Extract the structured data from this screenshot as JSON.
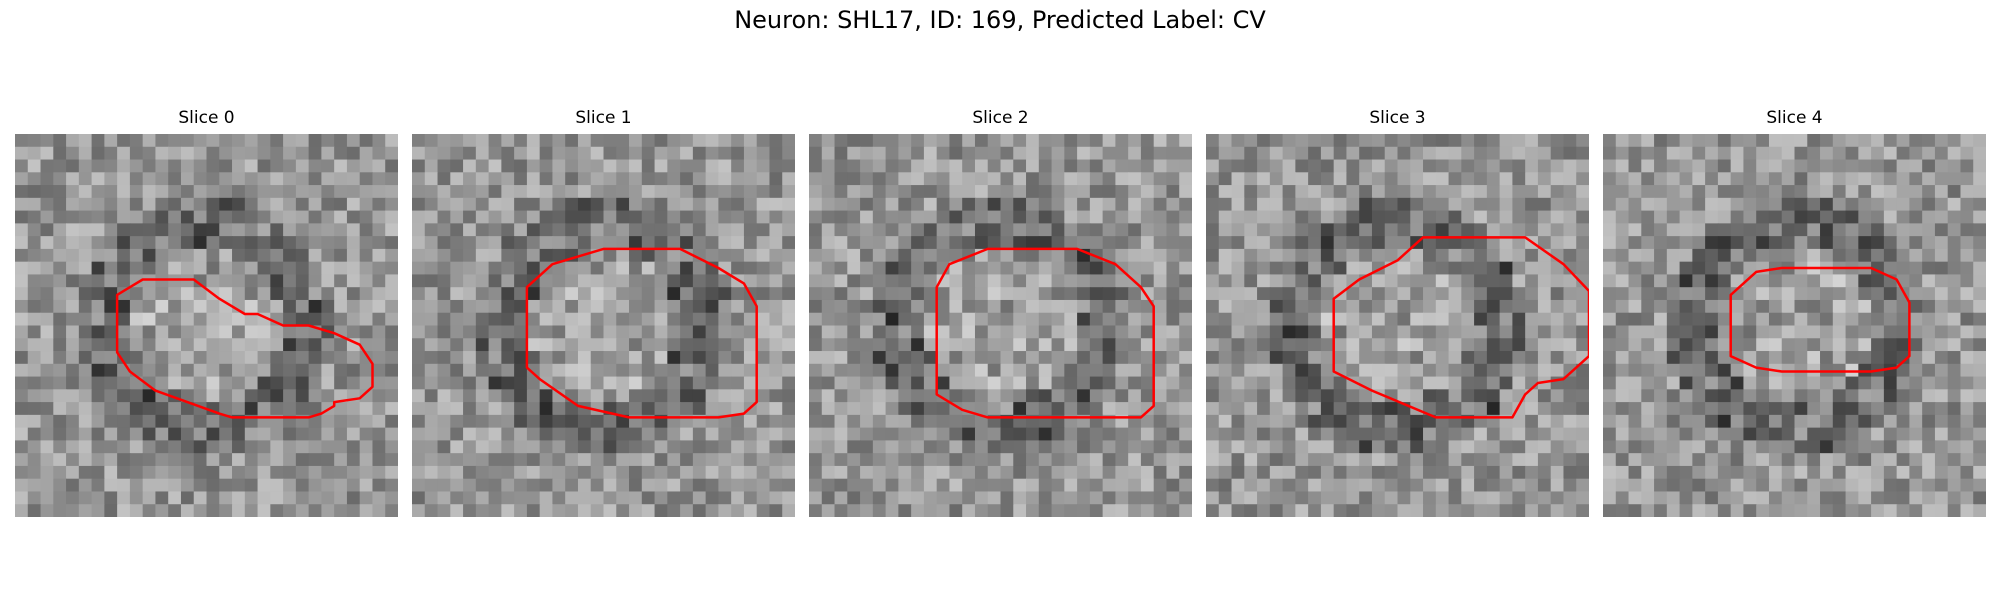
{
  "figure": {
    "title": "Neuron: SHL17, ID: 169, Predicted Label: CV"
  },
  "contour_color": "#ff0000",
  "panels": [
    {
      "title": "Slice 0",
      "seed": 11,
      "contour": [
        [
          8,
          0.42
        ],
        [
          10,
          0.38
        ],
        [
          14,
          0.38
        ],
        [
          16,
          0.43
        ],
        [
          18,
          0.47
        ],
        [
          19,
          0.47
        ],
        [
          21,
          0.5
        ],
        [
          23,
          0.5
        ],
        [
          25,
          0.52
        ],
        [
          27,
          0.55
        ],
        [
          28,
          0.6
        ],
        [
          28,
          0.66
        ],
        [
          27,
          0.69
        ],
        [
          25,
          0.7
        ],
        [
          25,
          0.71
        ],
        [
          24,
          0.73
        ],
        [
          23,
          0.74
        ],
        [
          17,
          0.74
        ],
        [
          16,
          0.73
        ],
        [
          11,
          0.67
        ],
        [
          9,
          0.62
        ],
        [
          8,
          0.57
        ]
      ]
    },
    {
      "title": "Slice 1",
      "seed": 23,
      "contour": [
        [
          9,
          0.4
        ],
        [
          11,
          0.34
        ],
        [
          15,
          0.3
        ],
        [
          21,
          0.3
        ],
        [
          24,
          0.35
        ],
        [
          26,
          0.39
        ],
        [
          27,
          0.45
        ],
        [
          27,
          0.7
        ],
        [
          26,
          0.73
        ],
        [
          24,
          0.74
        ],
        [
          17,
          0.74
        ],
        [
          13,
          0.71
        ],
        [
          10,
          0.64
        ],
        [
          9,
          0.61
        ]
      ]
    },
    {
      "title": "Slice 2",
      "seed": 37,
      "contour": [
        [
          10,
          0.4
        ],
        [
          11,
          0.34
        ],
        [
          14,
          0.3
        ],
        [
          21,
          0.3
        ],
        [
          24,
          0.34
        ],
        [
          26,
          0.4
        ],
        [
          27,
          0.45
        ],
        [
          27,
          0.71
        ],
        [
          26,
          0.74
        ],
        [
          24,
          0.74
        ],
        [
          14,
          0.74
        ],
        [
          12,
          0.72
        ],
        [
          10,
          0.68
        ]
      ]
    },
    {
      "title": "Slice 3",
      "seed": 49,
      "contour": [
        [
          10,
          0.43
        ],
        [
          12,
          0.38
        ],
        [
          15,
          0.33
        ],
        [
          17,
          0.27
        ],
        [
          25,
          0.27
        ],
        [
          28,
          0.34
        ],
        [
          30,
          0.41
        ],
        [
          30,
          0.58
        ],
        [
          28,
          0.64
        ],
        [
          26,
          0.65
        ],
        [
          25,
          0.68
        ],
        [
          24,
          0.74
        ],
        [
          18,
          0.74
        ],
        [
          13,
          0.67
        ],
        [
          10,
          0.62
        ]
      ]
    },
    {
      "title": "Slice 4",
      "seed": 61,
      "contour": [
        [
          10,
          0.42
        ],
        [
          12,
          0.36
        ],
        [
          14,
          0.35
        ],
        [
          21,
          0.35
        ],
        [
          23,
          0.38
        ],
        [
          24,
          0.44
        ],
        [
          24,
          0.58
        ],
        [
          23,
          0.61
        ],
        [
          21,
          0.62
        ],
        [
          14,
          0.62
        ],
        [
          12,
          0.61
        ],
        [
          10,
          0.58
        ]
      ]
    }
  ]
}
